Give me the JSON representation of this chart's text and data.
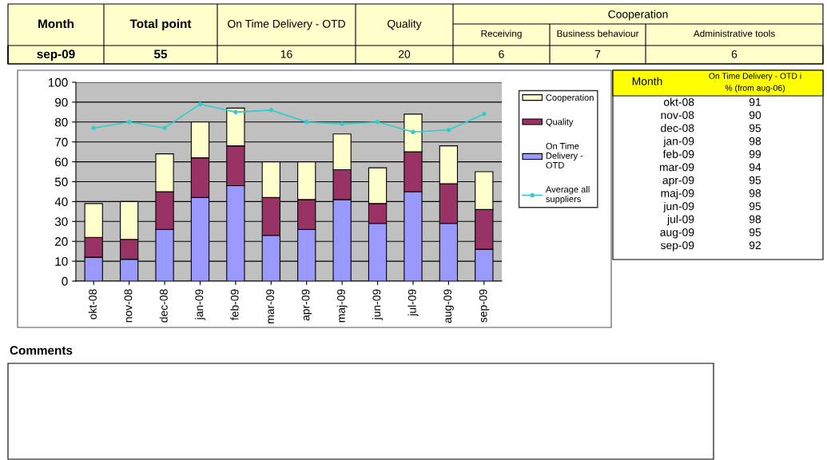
{
  "chart_data": [
    {
      "type": "bar",
      "stacked": true,
      "categories": [
        "okt-08",
        "nov-08",
        "dec-08",
        "jan-09",
        "feb-09",
        "mar-09",
        "apr-09",
        "maj-09",
        "jun-09",
        "jul-09",
        "aug-09",
        "sep-09"
      ],
      "series": [
        {
          "name": "On Time Delivery - OTD",
          "color": "#9999ff",
          "values": [
            12,
            11,
            26,
            42,
            48,
            23,
            26,
            41,
            29,
            45,
            29,
            16
          ]
        },
        {
          "name": "Quality",
          "color": "#993366",
          "values": [
            10,
            10,
            19,
            20,
            20,
            19,
            15,
            15,
            10,
            20,
            20,
            20
          ]
        },
        {
          "name": "Cooperation",
          "color": "#ffffcc",
          "values": [
            17,
            19,
            19,
            18,
            19,
            18,
            19,
            18,
            18,
            19,
            19,
            19
          ]
        },
        {
          "name": "Average all suppliers",
          "type": "line",
          "color": "#33cccc",
          "marker": "circle",
          "values": [
            77,
            80,
            77,
            89,
            85,
            86,
            80,
            79,
            80,
            75,
            76,
            84
          ]
        }
      ],
      "ylim": [
        0,
        100
      ],
      "yticks": [
        0,
        10,
        20,
        30,
        40,
        50,
        60,
        70,
        80,
        90,
        100
      ],
      "grid": "y",
      "legend": "top right"
    },
    {
      "type": "other",
      "annotations": [
        "Month",
        "Total point",
        "On Time Delivery - OTD",
        "Quality",
        "Cooperation",
        "Receiving",
        "Business behaviour",
        "Administrative tools",
        "sep-09",
        "55",
        "16",
        "20",
        "6",
        "7",
        "6"
      ]
    },
    {
      "type": "other",
      "annotations": [
        "Month",
        "On Time Delivery - OTD i % (from aug-06)",
        "okt-08",
        "91",
        "nov-08",
        "90",
        "dec-08",
        "95",
        "jan-09",
        "98",
        "feb-09",
        "99",
        "mar-09",
        "94",
        "apr-09",
        "95",
        "maj-09",
        "98",
        "jun-09",
        "95",
        "jul-09",
        "98",
        "aug-09",
        "95",
        "sep-09",
        "92"
      ]
    },
    {
      "type": "other",
      "annotations": [
        "Comments"
      ]
    }
  ]
}
